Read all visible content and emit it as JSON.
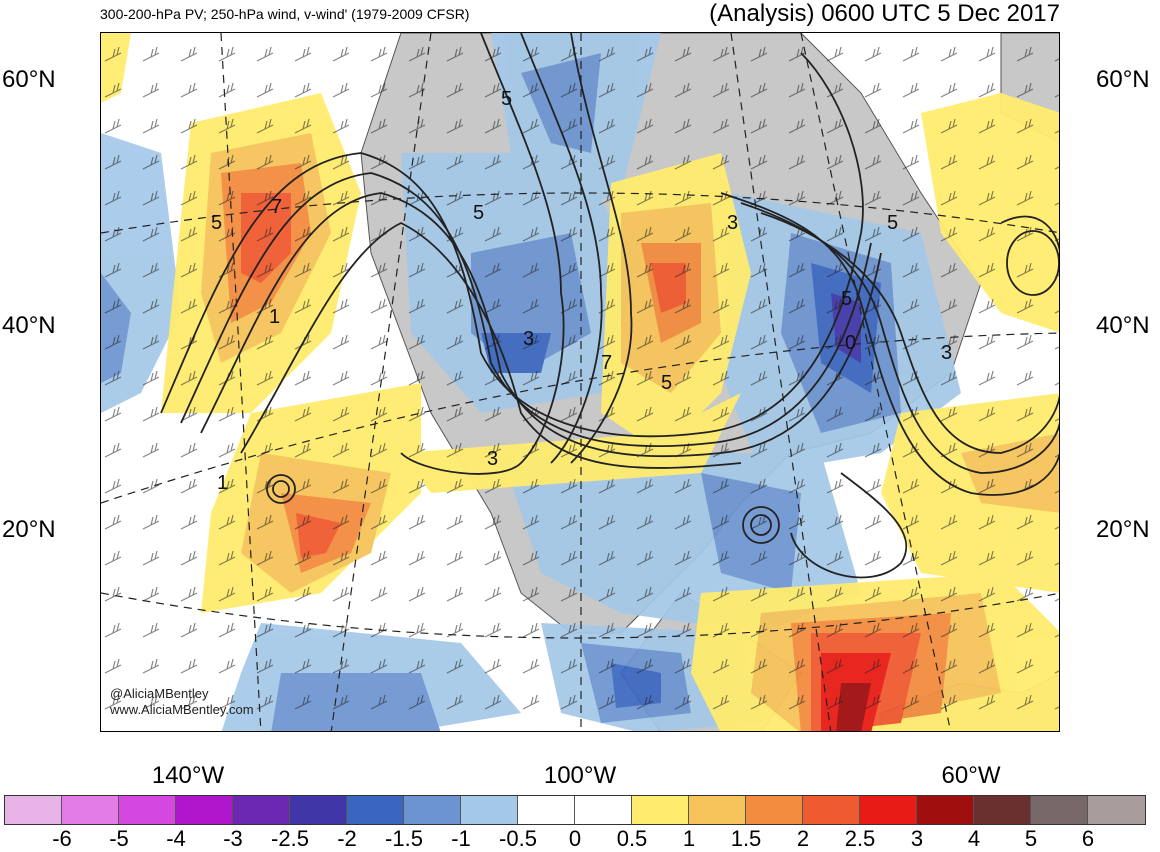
{
  "titles": {
    "left": "300-200-hPa PV; 250-hPa wind, v-wind' (1979-2009 CFSR)",
    "right": "(Analysis) 0600 UTC 5 Dec 2017"
  },
  "lat_labels": [
    "60°N",
    "40°N",
    "20°N"
  ],
  "lon_labels": [
    "140°W",
    "100°W",
    "60°W"
  ],
  "watermark": {
    "line1": "@AliciaMBentley",
    "line2": "www.AliciaMBentley.com"
  },
  "contour_labels": [
    "5",
    "7",
    "5",
    "5",
    "3",
    "3",
    "1",
    "1",
    "5",
    "0",
    "3",
    "3",
    "5",
    "7",
    "5"
  ],
  "colorbar": {
    "colors": [
      "#e8b4e8",
      "#e47ce8",
      "#d448e0",
      "#b016cc",
      "#6c28b0",
      "#4036a8",
      "#3a66c0",
      "#6c94d0",
      "#a4c8e8",
      "#ffffff",
      "#ffffff",
      "#ffec6e",
      "#f6c45a",
      "#f28c3e",
      "#f05a30",
      "#e81c16",
      "#a00e0e",
      "#6a3030",
      "#786868",
      "#a89c9c"
    ],
    "labels": [
      "-6",
      "-5",
      "-4",
      "-3",
      "-2.5",
      "-2",
      "-1.5",
      "-1",
      "-0.5",
      "0",
      "0.5",
      "1",
      "1.5",
      "2",
      "2.5",
      "3",
      "4",
      "5",
      "6"
    ]
  }
}
